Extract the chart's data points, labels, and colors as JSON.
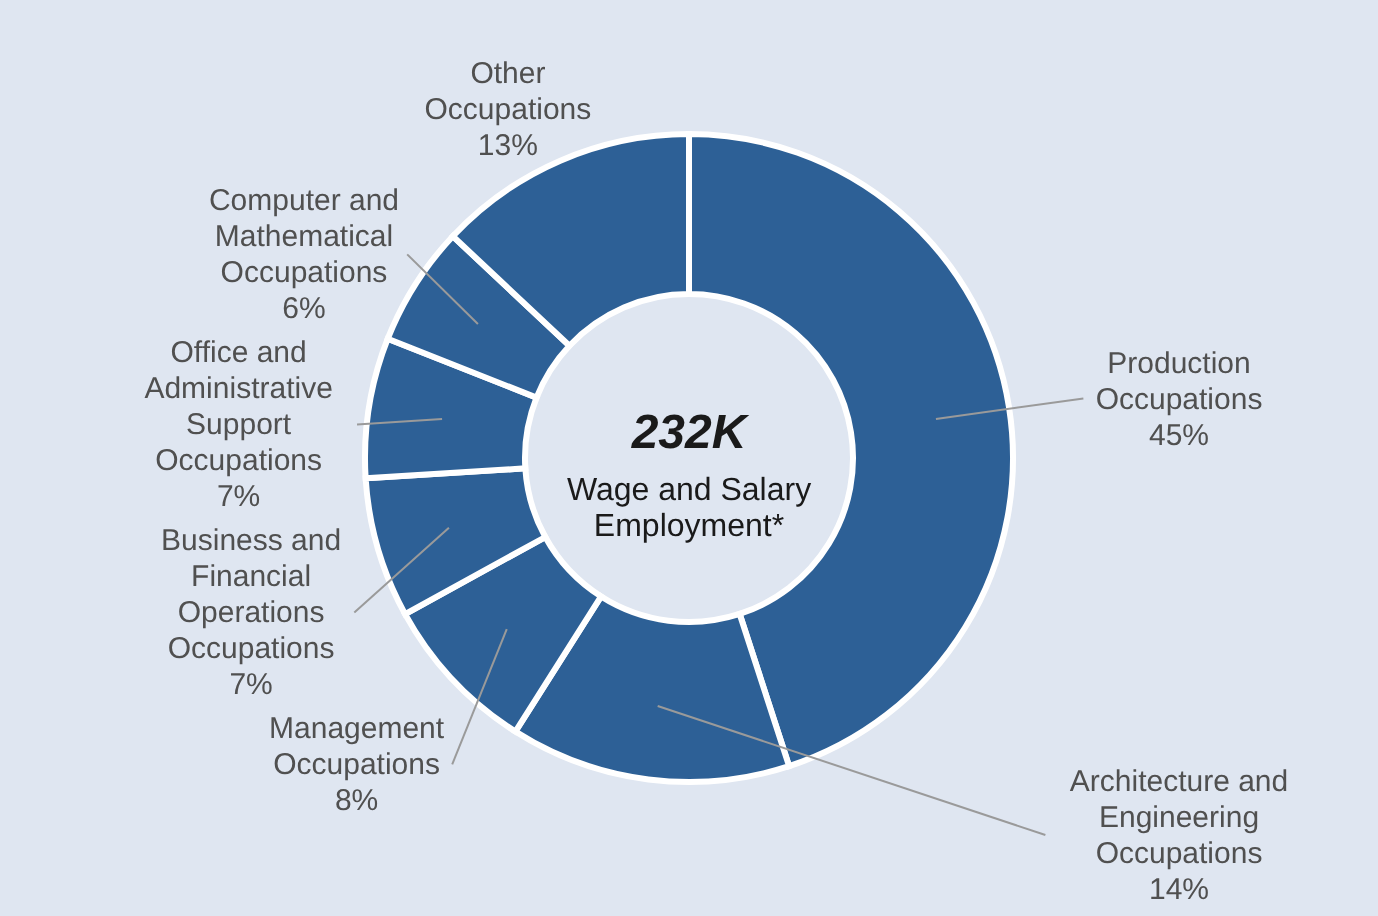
{
  "chart_data": {
    "type": "donut",
    "categories": [
      "Production Occupations",
      "Architecture and Engineering Occupations",
      "Management Occupations",
      "Business and Financial Operations Occupations",
      "Office and Administrative Support Occupations",
      "Computer and Mathematical Occupations",
      "Other Occupations"
    ],
    "values": [
      45,
      14,
      8,
      7,
      7,
      6,
      13
    ],
    "value_labels": [
      "45%",
      "14%",
      "8%",
      "7%",
      "7%",
      "6%",
      "13%"
    ],
    "colors": [
      "#2d6096",
      "#2d6096",
      "#2d6096",
      "#2d6096",
      "#2d6096",
      "#2d6096",
      "#2d6096"
    ],
    "annotations": [
      "232K",
      "Wage and Salary Employment*"
    ]
  }
}
